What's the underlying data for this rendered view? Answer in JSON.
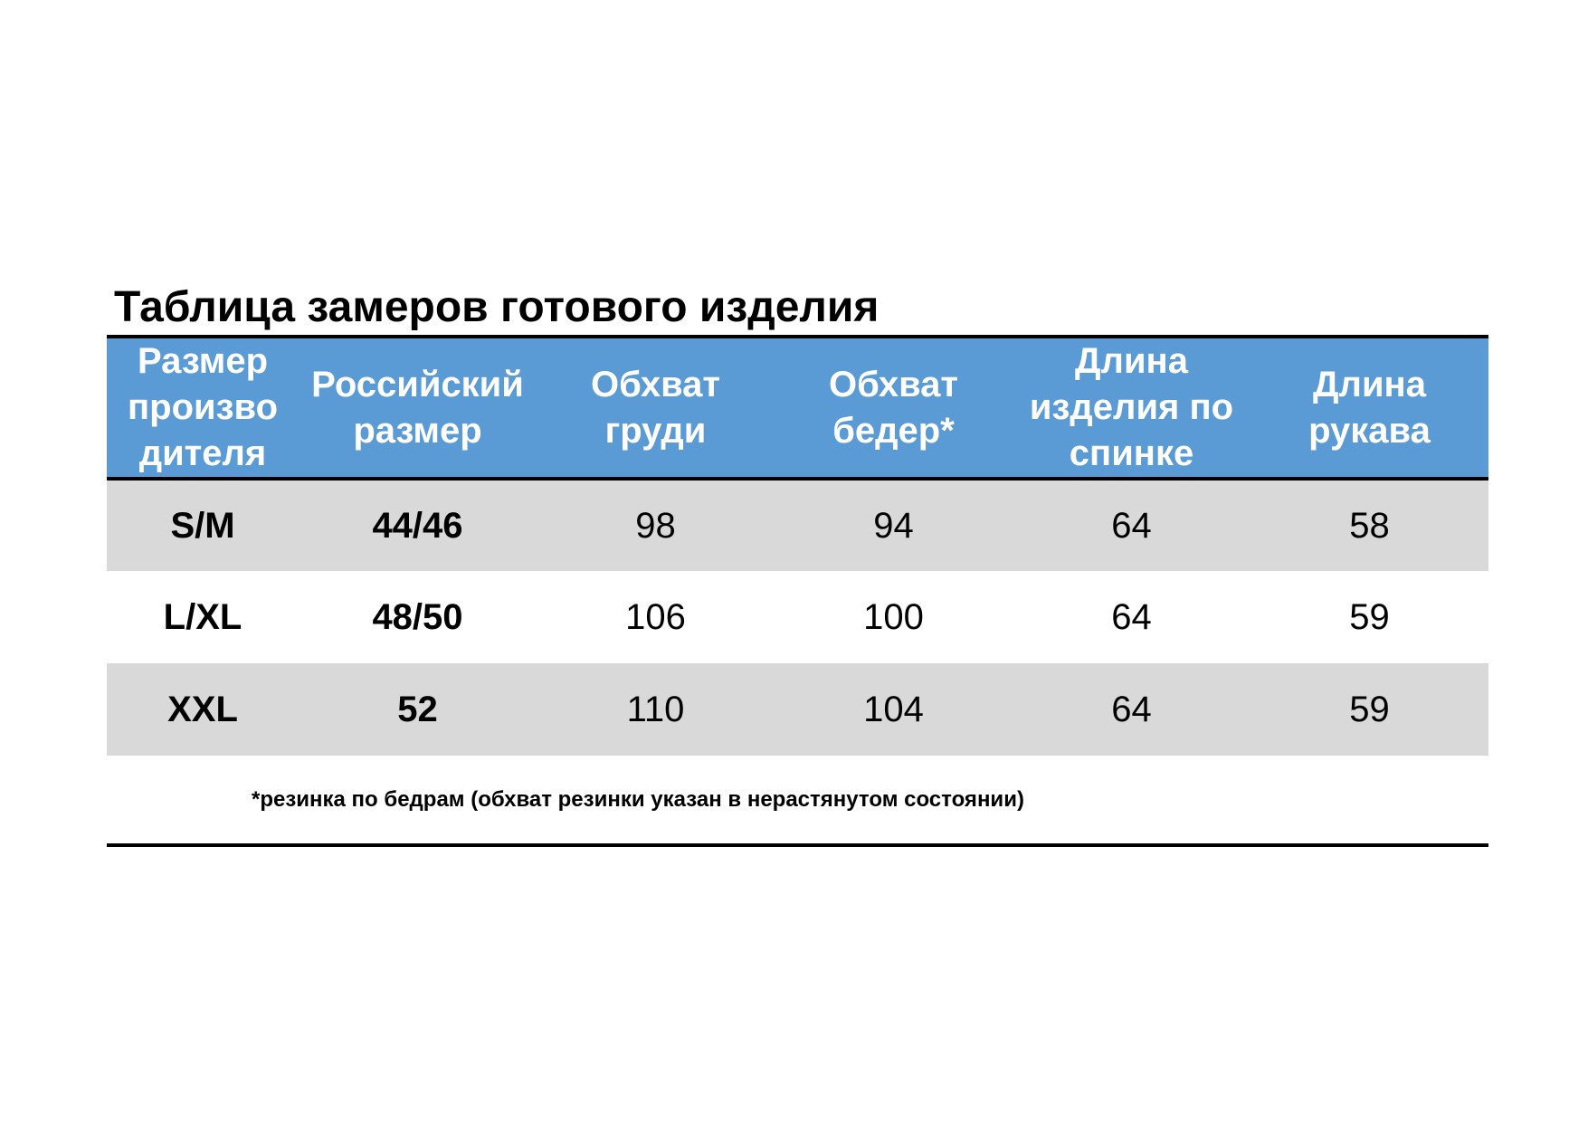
{
  "title": "Таблица замеров готового изделия",
  "colors": {
    "header_bg": "#5b9bd5",
    "header_text": "#ffffff",
    "shaded_row": "#d9d9d9",
    "rule": "#000000"
  },
  "table": {
    "headers": [
      "Размер\nпроизво\nдителя",
      "Российский\nразмер",
      "Обхват\nгруди",
      "Обхват\nбедер*",
      "Длина\nизделия по\nспинке",
      "Длина\nрукава"
    ],
    "rows": [
      [
        "S/M",
        "44/46",
        "98",
        "94",
        "64",
        "58"
      ],
      [
        "L/XL",
        "48/50",
        "106",
        "100",
        "64",
        "59"
      ],
      [
        "XXL",
        "52",
        "110",
        "104",
        "64",
        "59"
      ]
    ]
  },
  "footnote": "*резинка по бедрам (обхват резинки указан в нерастянутом состоянии)"
}
